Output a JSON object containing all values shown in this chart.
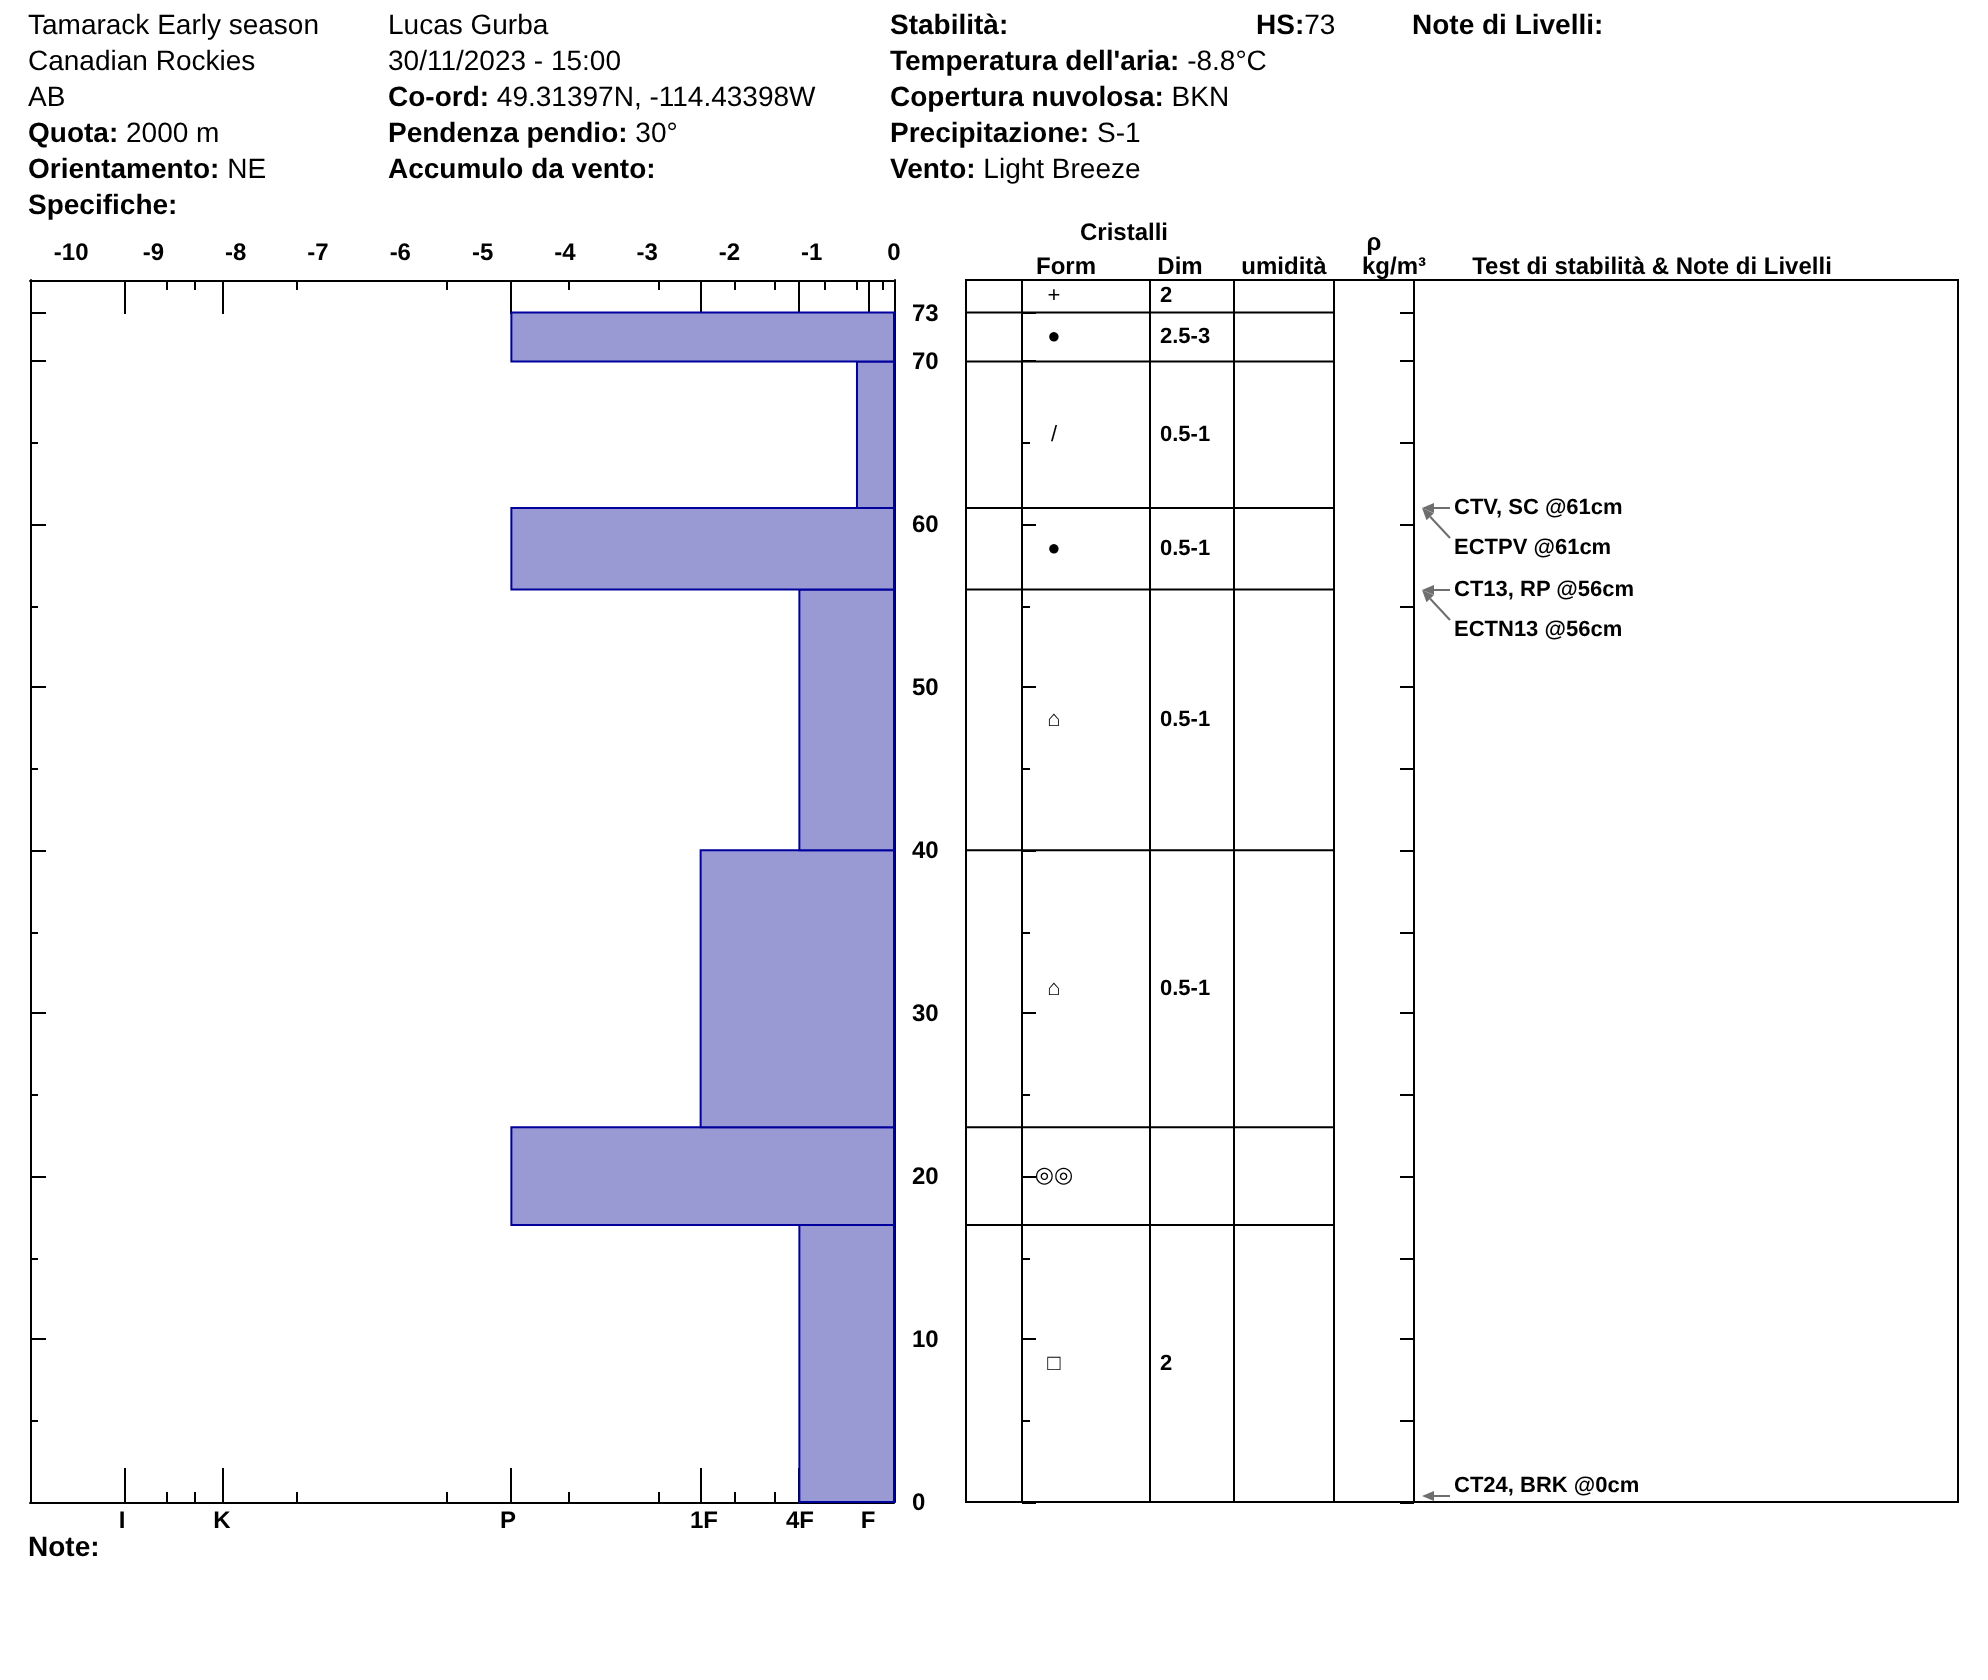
{
  "chart_data": {
    "type": "histogram",
    "orientation": "horizontal",
    "bins": [
      0,
      17,
      23,
      40,
      56,
      61,
      70,
      73
    ],
    "values": [
      -1.15,
      -4.65,
      -2.35,
      -1.15,
      -4.65,
      -0.45,
      -4.65
    ],
    "color": "#9999d4",
    "xlim": [
      -10.5,
      0
    ],
    "xticks": [
      -10,
      -9,
      -8,
      -7,
      -6,
      -5,
      -4,
      -3,
      -2,
      -1,
      0,
      {
        "value": -9.35,
        "label": null
      },
      {
        "value": -8.85,
        "label": null
      },
      {
        "value": -8.5,
        "label": null
      },
      {
        "value": -8.15,
        "label": null
      },
      {
        "value": -7.25,
        "label": null
      },
      {
        "value": -5.45,
        "label": null
      },
      {
        "value": -4.65,
        "label": null
      },
      {
        "value": -3.95,
        "label": null
      },
      {
        "value": -2.85,
        "label": null
      },
      {
        "value": -2.35,
        "label": null
      },
      {
        "value": -1.95,
        "label": null
      },
      {
        "value": -1.45,
        "label": null
      },
      {
        "value": -1.15,
        "label": null
      },
      {
        "value": -0.85,
        "label": null
      },
      {
        "value": -0.45,
        "label": null
      },
      {
        "value": -0.3,
        "label": null
      },
      {
        "value": -0.15,
        "label": null
      }
    ],
    "ylim": [
      0,
      75
    ],
    "yticks": [
      0,
      {
        "value": 5,
        "label": null
      },
      10,
      {
        "value": 15,
        "label": null
      },
      20,
      {
        "value": 25,
        "label": null
      },
      30,
      {
        "value": 35,
        "label": null
      },
      40,
      {
        "value": 45,
        "label": null
      },
      50,
      {
        "value": 55,
        "label": null
      },
      60,
      {
        "value": 65,
        "label": null
      },
      70,
      73
    ],
    "annotations": [
      "Tamarack Early season",
      "Canadian Rockies",
      "AB",
      "Quota: 2000 m",
      "Orientamento: NE",
      "Specifiche:",
      "Lucas Gurba",
      "30/11/2023 - 15:00",
      "Co-ord: 49.31397N, -114.43398W",
      "Pendenza pendio: 30°",
      "Accumulo da vento:",
      "Stabilità:",
      "Temperatura dell'aria: -8.8°C",
      "Copertura nuvolosa: BKN",
      "Precipitazione: S-1",
      "Vento: Light Breeze",
      "HS:73",
      "Note di Livelli:",
      "Note:",
      "I",
      "K",
      "P",
      "1F",
      "4F",
      "F",
      "Cristalli",
      "Form",
      "Dim",
      "umidità",
      "ρ",
      "kg/m³",
      "Test di stabilità & Note di Livelli",
      "+",
      "2",
      "●",
      "2.5-3",
      "/",
      "0.5-1",
      "●",
      "0.5-1",
      "⌂",
      "0.5-1",
      "⌂",
      "0.5-1",
      "◎◎",
      "□",
      "2",
      "CTV, SC @61cm",
      "ECTPV @61cm",
      "CT13, RP @56cm",
      "ECTN13 @56cm",
      "CT24, BRK @0cm"
    ]
  }
}
